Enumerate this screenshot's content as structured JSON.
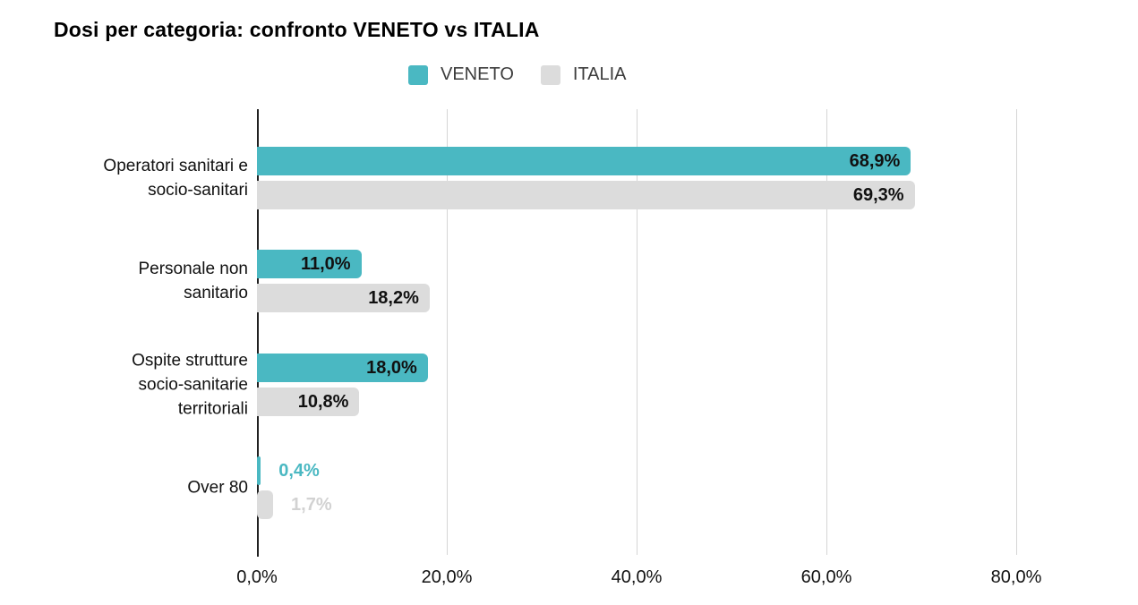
{
  "chart_data": {
    "type": "bar",
    "orientation": "horizontal",
    "title": "Dosi per categoria: confronto VENETO vs ITALIA",
    "legend_position": "top-center",
    "grid": true,
    "unit": "%",
    "categories": [
      {
        "label": "Operatori sanitari e socio-sanitari",
        "lines": [
          "Operatori sanitari e",
          "socio-sanitari"
        ]
      },
      {
        "label": "Personale non sanitario",
        "lines": [
          "Personale non",
          "sanitario"
        ]
      },
      {
        "label": "Ospite strutture socio-sanitarie territoriali",
        "lines": [
          "Ospite strutture",
          "socio-sanitarie",
          "territoriali"
        ]
      },
      {
        "label": "Over 80",
        "lines": [
          "Over 80"
        ]
      }
    ],
    "series": [
      {
        "name": "VENETO",
        "color": "#4ab8c2",
        "values": [
          68.9,
          11.0,
          18.0,
          0.4
        ],
        "value_labels": [
          "68,9%",
          "11,0%",
          "18,0%",
          "0,4%"
        ]
      },
      {
        "name": "ITALIA",
        "color": "#dcdcdc",
        "outside_label_color": "#d2d2d2",
        "values": [
          69.3,
          18.2,
          10.8,
          1.7
        ],
        "value_labels": [
          "69,3%",
          "18,2%",
          "10,8%",
          "1,7%"
        ]
      }
    ],
    "x_axis": {
      "min": 0,
      "max": 80,
      "ticks": [
        0,
        20,
        40,
        60,
        80
      ],
      "tick_labels": [
        "0,0%",
        "20,0%",
        "40,0%",
        "60,0%",
        "80,0%"
      ]
    },
    "colors": {
      "inside_value_label": "#111111",
      "gridline": "#d5d5d5",
      "axis_line": "#212121",
      "title": "#000000",
      "legend_text": "#3c3c3c",
      "category_text": "#111111"
    }
  }
}
